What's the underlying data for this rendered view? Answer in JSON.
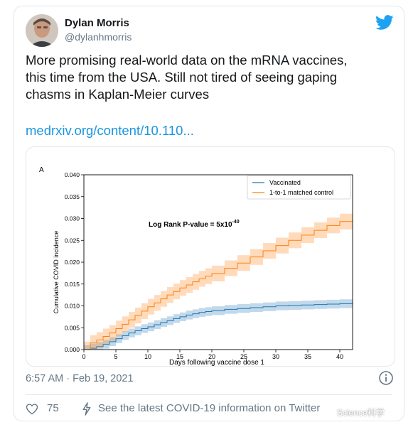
{
  "tweet": {
    "author_name": "Dylan Morris",
    "author_handle": "@dylanhmorris",
    "text": "More promising real-world data on the mRNA vaccines,\nthis time from the USA. Still not tired of seeing gaping\nchasms in Kaplan-Meier curves",
    "link_text": "medrxiv.org/content/10.110...",
    "timestamp": "6:57 AM · Feb 19, 2021",
    "like_count": "75",
    "covid_info": "See the latest COVID-19 information on Twitter",
    "brand_color": "#1da1f2",
    "icons": {
      "platform": "bird-icon",
      "info": "info-icon",
      "like": "heart-icon",
      "covid": "lightning-icon"
    }
  },
  "watermark": "Science科学",
  "chart_data": {
    "type": "line",
    "panel_label": "A",
    "xlabel": "Days following vaccine dose 1",
    "ylabel": "Cumulative COVID incidence",
    "xlim": [
      0,
      42
    ],
    "ylim": [
      0,
      0.04
    ],
    "x_ticks": [
      "0",
      "5",
      "10",
      "15",
      "20",
      "25",
      "30",
      "35",
      "40"
    ],
    "y_ticks": [
      "0.000",
      "0.005",
      "0.010",
      "0.015",
      "0.020",
      "0.025",
      "0.030",
      "0.035",
      "0.040"
    ],
    "annotation": "Log Rank P-value = 5x10",
    "annotation_exponent": "-40",
    "legend_position": "top-right",
    "grid": false,
    "series": [
      {
        "name": "Vaccinated",
        "color": "#1f77b4",
        "x": [
          0,
          1,
          2,
          3,
          4,
          5,
          6,
          7,
          8,
          9,
          10,
          11,
          12,
          13,
          14,
          15,
          16,
          17,
          18,
          19,
          20,
          22,
          24,
          26,
          28,
          30,
          32,
          34,
          36,
          38,
          40,
          42
        ],
        "y": [
          0.0,
          0.0003,
          0.0007,
          0.0012,
          0.0018,
          0.0025,
          0.0032,
          0.0038,
          0.0043,
          0.0048,
          0.0052,
          0.0057,
          0.0062,
          0.0066,
          0.0071,
          0.0075,
          0.0079,
          0.0082,
          0.0085,
          0.0087,
          0.0089,
          0.0092,
          0.0094,
          0.0096,
          0.0098,
          0.01,
          0.0101,
          0.0102,
          0.0103,
          0.0104,
          0.0105,
          0.0105
        ],
        "ci_halfwidth": 0.001
      },
      {
        "name": "1-to-1 matched control",
        "color": "#ff7f0e",
        "x": [
          0,
          1,
          2,
          3,
          4,
          5,
          6,
          7,
          8,
          9,
          10,
          11,
          12,
          13,
          14,
          15,
          16,
          17,
          18,
          19,
          20,
          22,
          24,
          26,
          28,
          30,
          32,
          34,
          36,
          38,
          40,
          42
        ],
        "y": [
          0.0,
          0.0015,
          0.0022,
          0.003,
          0.0038,
          0.0048,
          0.0058,
          0.0068,
          0.0078,
          0.0088,
          0.0098,
          0.0107,
          0.0116,
          0.0125,
          0.0133,
          0.0141,
          0.0148,
          0.0155,
          0.0162,
          0.0168,
          0.0174,
          0.0186,
          0.0198,
          0.0212,
          0.0226,
          0.0238,
          0.025,
          0.0262,
          0.0273,
          0.0284,
          0.0293,
          0.03
        ],
        "ci_halfwidth": 0.0018
      }
    ]
  }
}
